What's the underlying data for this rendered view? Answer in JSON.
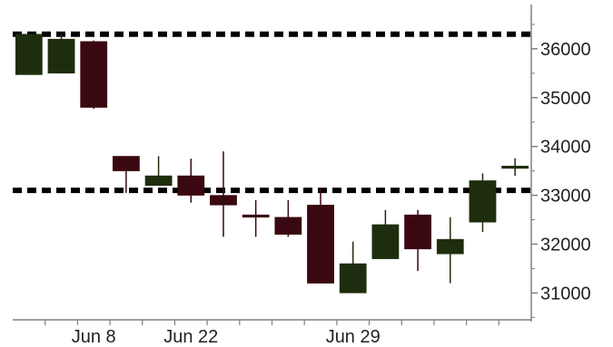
{
  "chart_data": {
    "type": "candlestick",
    "title": "",
    "xlabel": "",
    "ylabel": "",
    "ylim": [
      30450,
      37000
    ],
    "y_ticks": [
      31000,
      32000,
      33000,
      34000,
      35000,
      36000
    ],
    "y_tick_labels": [
      "31000",
      "32000",
      "33000",
      "34000",
      "35000",
      "36000"
    ],
    "x_tick_labels": [
      {
        "label": "Jun 8",
        "index": 2
      },
      {
        "label": "Jun 22",
        "index": 5
      },
      {
        "label": "Jun 29",
        "index": 10
      }
    ],
    "y_axis_position": "right",
    "grid": false,
    "reference_lines": [
      36300,
      33100
    ],
    "colors": {
      "up": "#1e2d0d",
      "down": "#3a0811",
      "axis": "#808080",
      "reference_line": "#000000"
    },
    "candles": [
      {
        "open": 35470,
        "high": 36300,
        "low": 35470,
        "close": 36300
      },
      {
        "open": 35500,
        "high": 36300,
        "low": 35500,
        "close": 36200
      },
      {
        "open": 36150,
        "high": 36170,
        "low": 34770,
        "close": 34800
      },
      {
        "open": 33800,
        "high": 33800,
        "low": 33050,
        "close": 33500
      },
      {
        "open": 33200,
        "high": 33800,
        "low": 33200,
        "close": 33400
      },
      {
        "open": 33400,
        "high": 33750,
        "low": 32850,
        "close": 33000
      },
      {
        "open": 33000,
        "high": 33900,
        "low": 32150,
        "close": 32800
      },
      {
        "open": 32600,
        "high": 32900,
        "low": 32150,
        "close": 32550
      },
      {
        "open": 32550,
        "high": 32900,
        "low": 32150,
        "close": 32200
      },
      {
        "open": 32800,
        "high": 33150,
        "low": 31200,
        "close": 31200
      },
      {
        "open": 31000,
        "high": 32050,
        "low": 31000,
        "close": 31600
      },
      {
        "open": 31700,
        "high": 32700,
        "low": 31700,
        "close": 32400
      },
      {
        "open": 32600,
        "high": 32700,
        "low": 31450,
        "close": 31900
      },
      {
        "open": 31800,
        "high": 32550,
        "low": 31200,
        "close": 32100
      },
      {
        "open": 32450,
        "high": 33450,
        "low": 32250,
        "close": 33300
      },
      {
        "open": 33550,
        "high": 33760,
        "low": 33400,
        "close": 33600
      }
    ]
  }
}
